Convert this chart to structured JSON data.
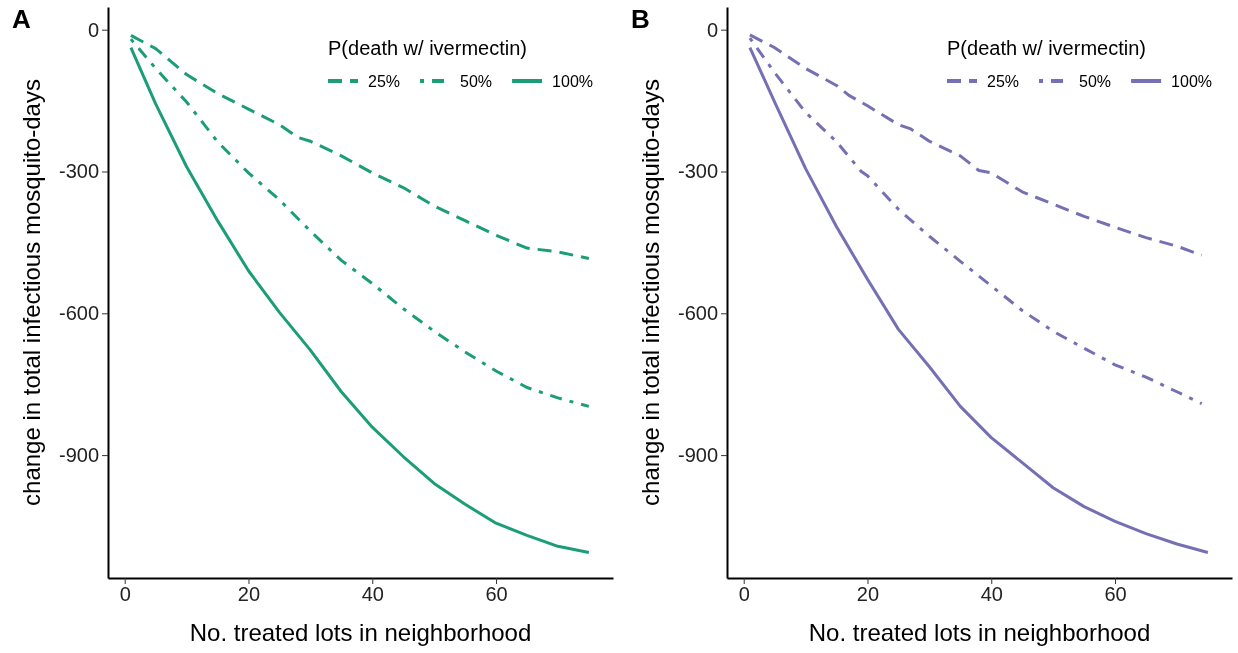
{
  "chart_data": [
    {
      "type": "line",
      "title": "A",
      "xlabel": "No. treated lots in neighborhood",
      "ylabel": "change in total infectious mosquito-days",
      "legend_title": "P(death w/ ivermectin)",
      "legend": "top right",
      "grid": false,
      "xlim": [
        -2.7,
        78.9
      ],
      "ylim": [
        -1160,
        48
      ],
      "xticks": [
        0,
        20,
        40,
        60
      ],
      "yticks": [
        0,
        -300,
        -600,
        -900
      ],
      "series": [
        {
          "name": "25%",
          "color": "#1b9e77",
          "line_style": "dashed",
          "x": [
            1,
            5,
            10,
            15,
            20,
            25,
            28,
            30,
            35,
            40,
            45,
            50,
            55,
            60,
            65,
            70,
            75
          ],
          "values": [
            -12,
            -40,
            -95,
            -135,
            -168,
            -201,
            -228,
            -236,
            -267,
            -303,
            -334,
            -373,
            -404,
            -435,
            -462,
            -470,
            -484
          ]
        },
        {
          "name": "50%",
          "color": "#1b9e77",
          "line_style": "dotted",
          "x": [
            1,
            5,
            10,
            15,
            20,
            25,
            30,
            35,
            40,
            45,
            50,
            55,
            60,
            65,
            70,
            75
          ],
          "values": [
            -20,
            -82,
            -153,
            -237,
            -303,
            -360,
            -426,
            -488,
            -537,
            -590,
            -638,
            -682,
            -722,
            -757,
            -779,
            -797
          ]
        },
        {
          "name": "100%",
          "color": "#1b9e77",
          "line_style": "solid",
          "x": [
            1,
            5,
            10,
            15,
            20,
            25,
            30,
            35,
            40,
            45,
            50,
            55,
            60,
            65,
            70,
            75
          ],
          "values": [
            -38,
            -157,
            -290,
            -404,
            -510,
            -598,
            -678,
            -766,
            -841,
            -903,
            -960,
            -1004,
            -1044,
            -1070,
            -1093,
            -1106
          ]
        }
      ]
    },
    {
      "type": "line",
      "title": "B",
      "xlabel": "No. treated lots in neighborhood",
      "ylabel": "change in total infectious mosquito-days",
      "legend_title": "P(death w/ ivermectin)",
      "legend": "top right",
      "grid": false,
      "xlim": [
        -2.7,
        78.9
      ],
      "ylim": [
        -1160,
        48
      ],
      "xticks": [
        0,
        20,
        40,
        60
      ],
      "yticks": [
        0,
        -300,
        -600,
        -900
      ],
      "series": [
        {
          "name": "25%",
          "color": "#7570b3",
          "line_style": "dashed",
          "x": [
            1,
            5,
            10,
            15,
            17,
            20,
            25,
            27,
            30,
            35,
            38,
            40,
            45,
            50,
            55,
            60,
            65,
            70,
            74
          ],
          "values": [
            -11,
            -38,
            -82,
            -118,
            -139,
            -161,
            -201,
            -210,
            -236,
            -267,
            -298,
            -303,
            -343,
            -369,
            -395,
            -418,
            -440,
            -458,
            -477
          ]
        },
        {
          "name": "50%",
          "color": "#7570b3",
          "line_style": "dotted",
          "x": [
            1,
            5,
            10,
            15,
            19,
            20,
            25,
            30,
            35,
            40,
            45,
            50,
            55,
            60,
            65,
            70,
            74
          ],
          "values": [
            -18,
            -91,
            -175,
            -237,
            -300,
            -309,
            -380,
            -437,
            -490,
            -542,
            -594,
            -638,
            -674,
            -709,
            -735,
            -766,
            -791
          ]
        },
        {
          "name": "100%",
          "color": "#7570b3",
          "line_style": "solid",
          "x": [
            1,
            5,
            10,
            15,
            20,
            25,
            30,
            35,
            40,
            45,
            50,
            55,
            60,
            65,
            70,
            75
          ],
          "values": [
            -38,
            -153,
            -294,
            -417,
            -528,
            -634,
            -713,
            -797,
            -863,
            -916,
            -969,
            -1009,
            -1040,
            -1066,
            -1088,
            -1106
          ]
        }
      ]
    }
  ]
}
